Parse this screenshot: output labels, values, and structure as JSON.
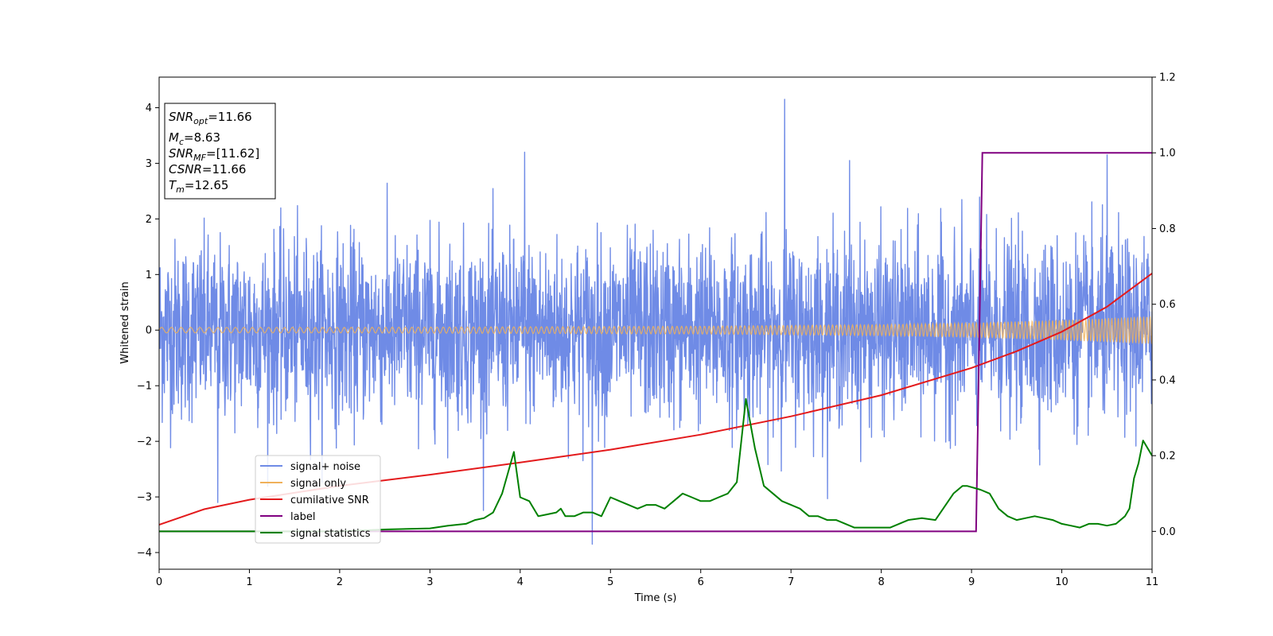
{
  "chart_data": {
    "type": "line",
    "xlabel": "Time (s)",
    "ylabel": "Whitened strain",
    "xlim": [
      0,
      11
    ],
    "ylim": [
      -4.3,
      4.55
    ],
    "y2lim": [
      -0.1,
      1.2
    ],
    "x_ticks": [
      "0",
      "1",
      "2",
      "3",
      "4",
      "5",
      "6",
      "7",
      "8",
      "9",
      "10",
      "11"
    ],
    "y_ticks": [
      "−4",
      "−3",
      "−2",
      "−1",
      "0",
      "1",
      "2",
      "3",
      "4"
    ],
    "y2_ticks": [
      "0.0",
      "0.2",
      "0.4",
      "0.6",
      "0.8",
      "1.0",
      "1.2"
    ],
    "grid": false,
    "legend_position": "lower-left",
    "info_box": {
      "snr_opt": "=11.66",
      "mc": "=8.63",
      "snr_mf": "=[11.62]",
      "csnr": "=11.66",
      "tm": "=12.65"
    },
    "series": [
      {
        "name": "signal+ noise",
        "color": "#6f8be6",
        "axis": "left",
        "style": "dense noise",
        "approx_envelope": [
          -2.5,
          2.5
        ],
        "notable_peaks": [
          [
            6.93,
            4.15
          ],
          [
            4.8,
            -3.85
          ],
          [
            0.65,
            -3.1
          ],
          [
            4.05,
            3.2
          ],
          [
            7.65,
            3.05
          ],
          [
            10.5,
            3.15
          ]
        ]
      },
      {
        "name": "signal only",
        "color": "#f0b15a",
        "axis": "left",
        "style": "chirp",
        "x": [
          0,
          2,
          4,
          6,
          8,
          9,
          10,
          11
        ],
        "amplitude": [
          0.05,
          0.05,
          0.06,
          0.07,
          0.1,
          0.13,
          0.18,
          0.25
        ]
      },
      {
        "name": "cumilative SNR",
        "color": "#e31a1c",
        "axis": "left",
        "x": [
          0,
          0.5,
          1,
          2,
          3,
          4,
          5,
          6,
          7,
          8,
          9,
          9.5,
          10,
          10.5,
          11
        ],
        "y": [
          -3.5,
          -3.22,
          -3.05,
          -2.8,
          -2.6,
          -2.38,
          -2.15,
          -1.88,
          -1.55,
          -1.17,
          -0.68,
          -0.38,
          -0.03,
          0.42,
          1.02
        ]
      },
      {
        "name": "label",
        "color": "#800080",
        "axis": "right",
        "x": [
          0,
          9.05,
          9.12,
          11
        ],
        "y": [
          0,
          0,
          1,
          1
        ]
      },
      {
        "name": "signal statistics",
        "color": "#008000",
        "axis": "right",
        "x": [
          0,
          0.5,
          1,
          1.5,
          2,
          2.5,
          3,
          3.2,
          3.4,
          3.5,
          3.6,
          3.7,
          3.8,
          3.93,
          4.0,
          4.1,
          4.2,
          4.3,
          4.4,
          4.45,
          4.5,
          4.6,
          4.7,
          4.8,
          4.9,
          5.0,
          5.1,
          5.2,
          5.3,
          5.4,
          5.5,
          5.6,
          5.7,
          5.8,
          5.9,
          6.0,
          6.1,
          6.2,
          6.3,
          6.4,
          6.5,
          6.6,
          6.7,
          6.8,
          6.9,
          7.0,
          7.1,
          7.2,
          7.3,
          7.4,
          7.5,
          7.7,
          7.9,
          8.1,
          8.3,
          8.45,
          8.6,
          8.8,
          8.9,
          8.95,
          9.1,
          9.2,
          9.3,
          9.4,
          9.5,
          9.6,
          9.7,
          9.8,
          9.9,
          10.0,
          10.1,
          10.2,
          10.3,
          10.4,
          10.5,
          10.6,
          10.7,
          10.75,
          10.8,
          10.85,
          10.9,
          11.0
        ],
        "y": [
          0.0,
          0.0,
          0.0,
          0.0,
          0.0,
          0.005,
          0.008,
          0.015,
          0.02,
          0.03,
          0.035,
          0.05,
          0.1,
          0.21,
          0.09,
          0.08,
          0.04,
          0.045,
          0.05,
          0.06,
          0.04,
          0.04,
          0.05,
          0.05,
          0.04,
          0.09,
          0.08,
          0.07,
          0.06,
          0.07,
          0.07,
          0.06,
          0.08,
          0.1,
          0.09,
          0.08,
          0.08,
          0.09,
          0.1,
          0.13,
          0.35,
          0.22,
          0.12,
          0.1,
          0.08,
          0.07,
          0.06,
          0.04,
          0.04,
          0.03,
          0.03,
          0.01,
          0.01,
          0.01,
          0.03,
          0.035,
          0.03,
          0.1,
          0.12,
          0.12,
          0.11,
          0.1,
          0.06,
          0.04,
          0.03,
          0.035,
          0.04,
          0.035,
          0.03,
          0.02,
          0.015,
          0.01,
          0.02,
          0.02,
          0.015,
          0.02,
          0.04,
          0.06,
          0.14,
          0.18,
          0.24,
          0.2
        ]
      }
    ]
  }
}
